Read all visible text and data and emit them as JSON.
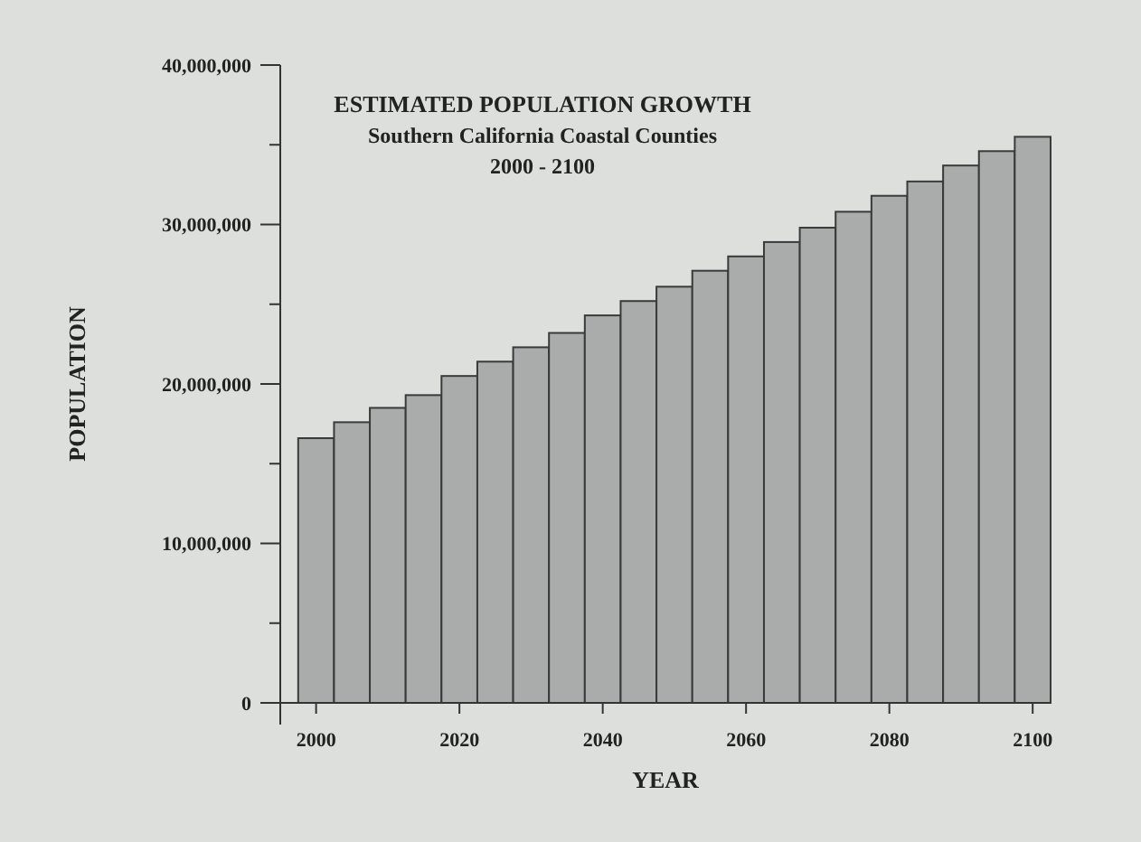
{
  "chart_data": {
    "type": "bar",
    "title": "ESTIMATED POPULATION GROWTH",
    "subtitle": "Southern California Coastal Counties",
    "annotations": [
      "2000 - 2100"
    ],
    "xlabel": "YEAR",
    "ylabel": "POPULATION",
    "x": [
      2000,
      2005,
      2010,
      2015,
      2020,
      2025,
      2030,
      2035,
      2040,
      2045,
      2050,
      2055,
      2060,
      2065,
      2070,
      2075,
      2080,
      2085,
      2090,
      2095,
      2100
    ],
    "values": [
      16600000,
      17600000,
      18500000,
      19300000,
      20500000,
      21400000,
      22300000,
      23200000,
      24300000,
      25200000,
      26100000,
      27100000,
      28000000,
      28900000,
      29800000,
      30800000,
      31800000,
      32700000,
      33700000,
      34600000,
      35500000
    ],
    "color": "#a9acab",
    "xlim": [
      1995,
      2102.5
    ],
    "xticks": [
      2000,
      2020,
      2040,
      2060,
      2080,
      2100
    ],
    "ylim": [
      0,
      40000000
    ],
    "yticks": [
      {
        "value": 0,
        "label": "0"
      },
      {
        "value": 5000000,
        "label": null
      },
      {
        "value": 10000000,
        "label": "10,000,000"
      },
      {
        "value": 15000000,
        "label": null
      },
      {
        "value": 20000000,
        "label": "20,000,000"
      },
      {
        "value": 25000000,
        "label": null
      },
      {
        "value": 30000000,
        "label": "30,000,000"
      },
      {
        "value": 35000000,
        "label": null
      },
      {
        "value": 40000000,
        "label": "40,000,000"
      }
    ],
    "grid": false
  }
}
